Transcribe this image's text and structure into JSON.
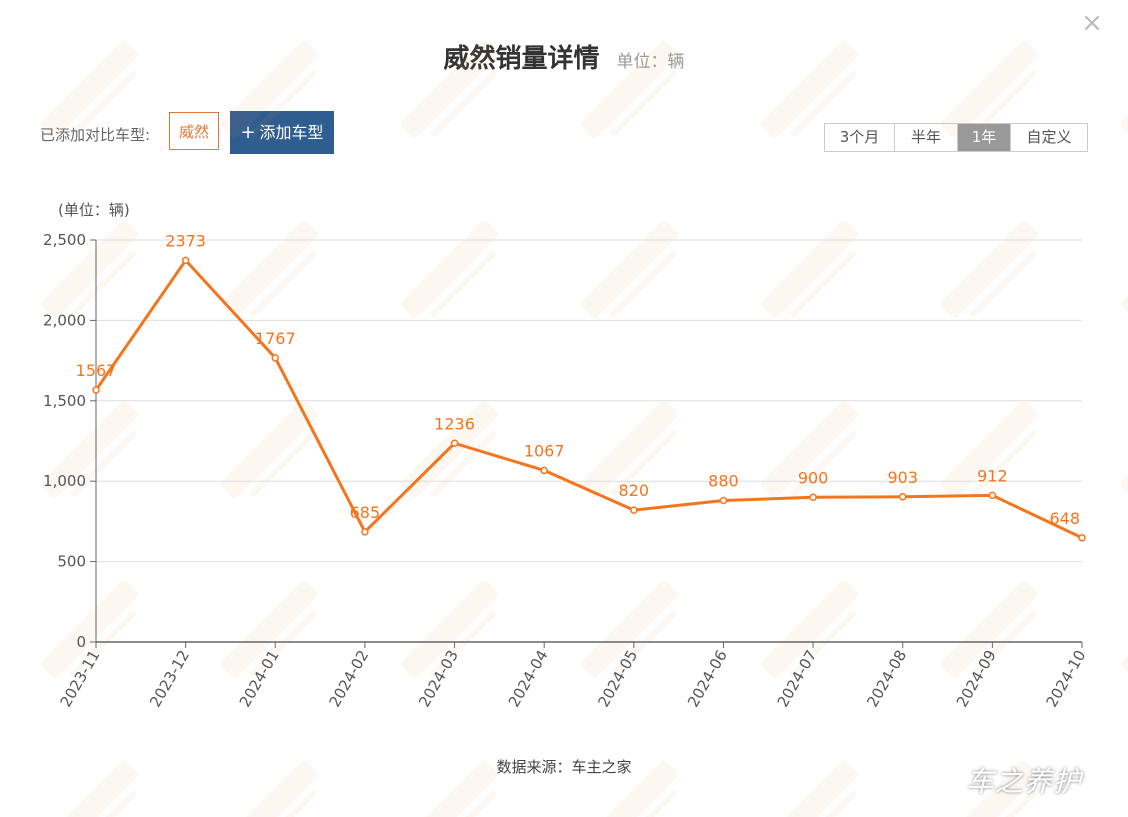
{
  "header": {
    "title": "威然销量详情",
    "unit": "单位：辆",
    "close_symbol": "×"
  },
  "compare": {
    "label": "已添加对比车型:",
    "model": "威然",
    "add_label": "添加车型"
  },
  "period_tabs": [
    {
      "label": "3个月",
      "active": false
    },
    {
      "label": "半年",
      "active": false
    },
    {
      "label": "1年",
      "active": true
    },
    {
      "label": "自定义",
      "active": false
    }
  ],
  "footer": {
    "source": "数据来源：车主之家",
    "brand": "车之养护"
  },
  "chart_data": {
    "type": "line",
    "ylabel": "(单位：辆)",
    "categories": [
      "2023-11",
      "2023-12",
      "2024-01",
      "2024-02",
      "2024-03",
      "2024-04",
      "2024-05",
      "2024-06",
      "2024-07",
      "2024-08",
      "2024-09",
      "2024-10"
    ],
    "series": [
      {
        "values": [
          1567,
          2373,
          1767,
          685,
          1236,
          1067,
          820,
          880,
          900,
          903,
          912,
          648
        ]
      }
    ],
    "ylim": [
      0,
      2500
    ],
    "yticks": [
      0,
      500,
      1000,
      1500,
      2000,
      2500
    ],
    "ytick_labels": [
      "0",
      "500",
      "1,000",
      "1,500",
      "2,000",
      "2,500"
    ],
    "grid": true,
    "colors": {
      "line": "#f5751e",
      "label": "#f5751e",
      "grid": "#dddddd",
      "axis": "#666666"
    }
  }
}
